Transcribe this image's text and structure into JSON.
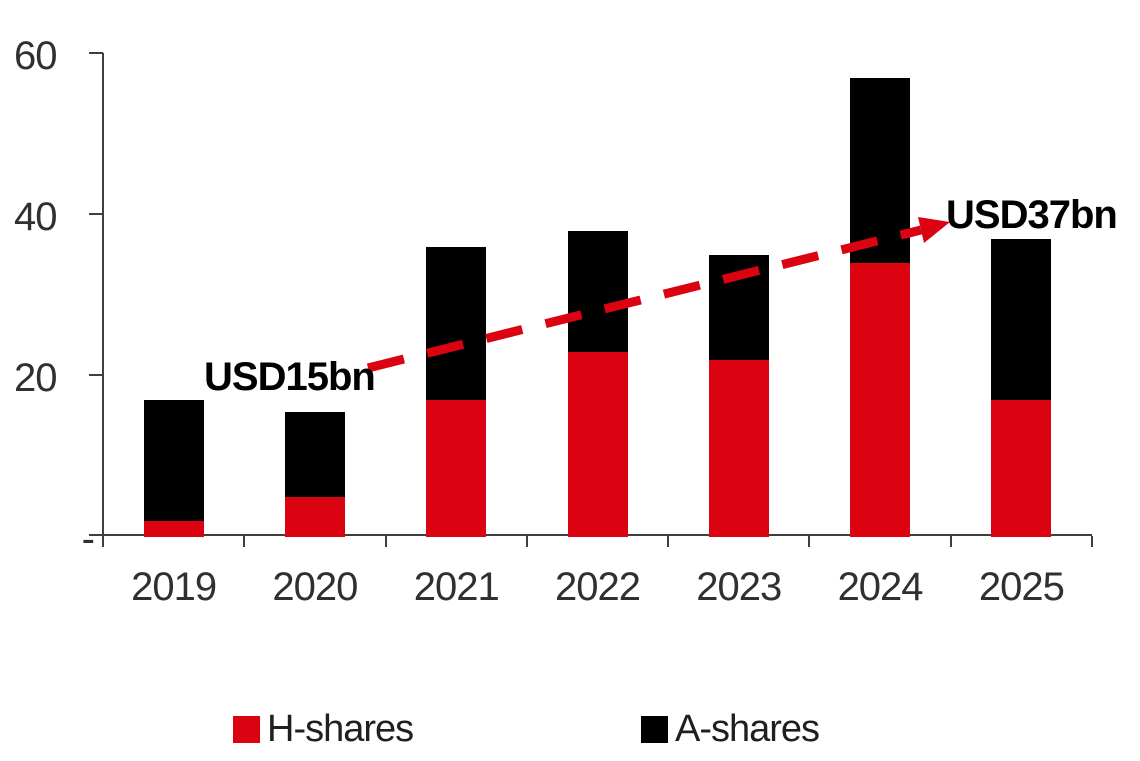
{
  "chart_data": {
    "type": "bar",
    "stacked": true,
    "title": "",
    "xlabel": "",
    "ylabel": "",
    "categories": [
      "2019",
      "2020",
      "2021",
      "2022",
      "2023",
      "2024",
      "2025"
    ],
    "series": [
      {
        "name": "H-shares",
        "color": "#db0211",
        "values": [
          2,
          5,
          17,
          23,
          22,
          34,
          17
        ]
      },
      {
        "name": "A-shares",
        "color": "#000000",
        "values": [
          15,
          10.5,
          19,
          15,
          13,
          23,
          20
        ]
      }
    ],
    "stack_totals": [
      17,
      15.5,
      36,
      38,
      35,
      57,
      37
    ],
    "ylim": [
      0,
      60
    ],
    "yticks": [
      {
        "value": 60,
        "label": "60"
      },
      {
        "value": 40,
        "label": "40"
      },
      {
        "value": 20,
        "label": "20"
      },
      {
        "value": 0,
        "label": "-"
      }
    ],
    "grid": false,
    "legend_position": "bottom",
    "annotations": [
      {
        "text": "USD15bn",
        "anchor_category": "2020",
        "style": "bold"
      },
      {
        "text": "USD37bn",
        "anchor_category": "2025",
        "style": "bold"
      }
    ],
    "trend_arrow": {
      "description": "red dashed arrow from USD15bn label to USD37bn label",
      "color": "#db0211",
      "dash": true,
      "from_value": 15,
      "to_value": 37
    },
    "axis_color": "#3f3f3f",
    "text_color": "#303030"
  }
}
